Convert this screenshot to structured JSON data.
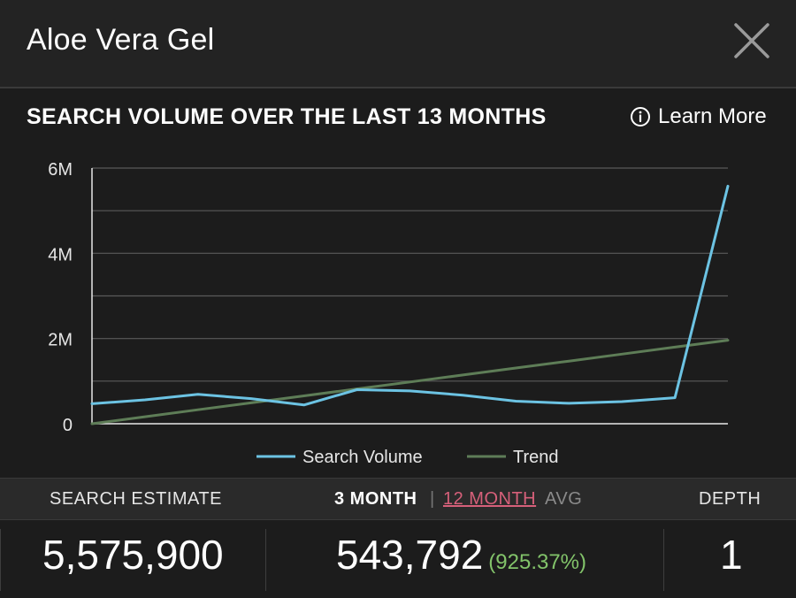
{
  "header": {
    "title": "Aloe Vera Gel"
  },
  "icons": {
    "close": "close-icon",
    "info": "info-icon"
  },
  "section": {
    "title": "SEARCH VOLUME OVER THE LAST 13 MONTHS",
    "learn_more": "Learn More"
  },
  "chart_data": {
    "type": "line",
    "title": "",
    "xlabel": "",
    "ylabel": "",
    "ylim": [
      0,
      6000000
    ],
    "y_ticks": [
      0,
      2000000,
      4000000,
      6000000
    ],
    "y_tick_labels": [
      "0",
      "2M",
      "4M",
      "6M"
    ],
    "grid": true,
    "legend_position": "bottom-center",
    "x": [
      1,
      2,
      3,
      4,
      5,
      6,
      7,
      8,
      9,
      10,
      11,
      12,
      13
    ],
    "series": [
      {
        "name": "Search Volume",
        "color": "#6cc3e3",
        "values": [
          470000,
          560000,
          690000,
          590000,
          440000,
          800000,
          770000,
          670000,
          530000,
          480000,
          520000,
          610000,
          5575900
        ]
      },
      {
        "name": "Trend",
        "color": "#5e7d57",
        "values": [
          0,
          163000,
          327000,
          490000,
          653000,
          817000,
          980000,
          1143000,
          1307000,
          1470000,
          1633000,
          1797000,
          1960000
        ]
      }
    ]
  },
  "stats": {
    "search_estimate_label": "SEARCH ESTIMATE",
    "month3_label": "3 MONTH",
    "separator": "|",
    "month12_label": "12 MONTH",
    "avg_label": "AVG",
    "depth_label": "DEPTH",
    "search_estimate_value": "5,575,900",
    "avg_value": "543,792",
    "avg_change": "(925.37%)",
    "depth_value": "1"
  },
  "colors": {
    "background": "#1c1c1c",
    "accent_link": "#d6607a",
    "positive": "#82c36a"
  }
}
